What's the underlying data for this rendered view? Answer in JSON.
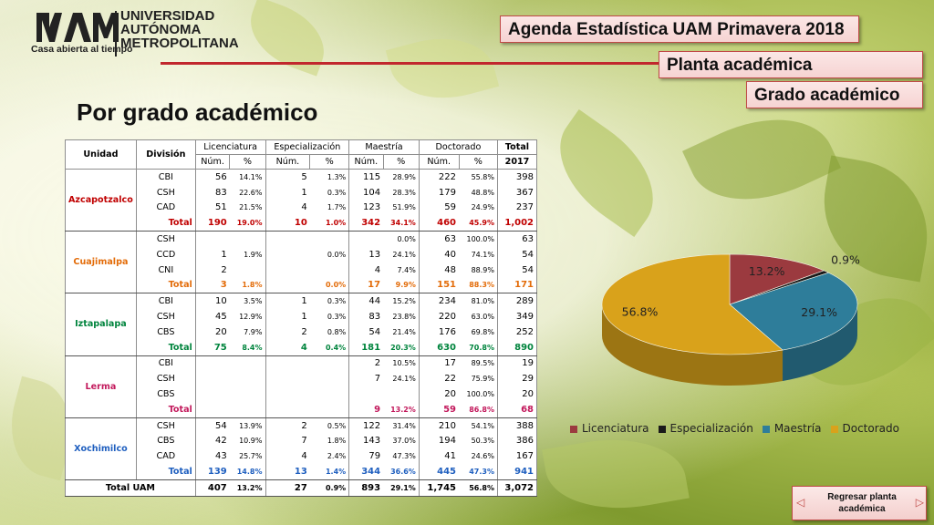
{
  "logo": {
    "tagline": "Casa abierta al tiempo",
    "university_line1": "UNIVERSIDAD",
    "university_line2": "AUTÓNOMA",
    "university_line3": "METROPOLITANA"
  },
  "tags": {
    "agenda": "Agenda Estadística UAM Primavera 2018",
    "planta": "Planta académica",
    "grado": "Grado académico"
  },
  "page_title": "Por grado académico",
  "table": {
    "headers": {
      "unidad": "Unidad",
      "division": "División",
      "licenciatura": "Licenciatura",
      "especializacion": "Especialización",
      "maestria": "Maestría",
      "doctorado": "Doctorado",
      "total": "Total",
      "total_year": "2017",
      "num": "Núm.",
      "pct": "%"
    },
    "units": [
      {
        "name": "Azcapotzalco",
        "color": "#c00000",
        "rows": [
          {
            "div": "CBI",
            "lic": "56",
            "licp": "14.1%",
            "esp": "5",
            "espp": "1.3%",
            "mae": "115",
            "maep": "28.9%",
            "doc": "222",
            "docp": "55.8%",
            "tot": "398"
          },
          {
            "div": "CSH",
            "lic": "83",
            "licp": "22.6%",
            "esp": "1",
            "espp": "0.3%",
            "mae": "104",
            "maep": "28.3%",
            "doc": "179",
            "docp": "48.8%",
            "tot": "367"
          },
          {
            "div": "CAD",
            "lic": "51",
            "licp": "21.5%",
            "esp": "4",
            "espp": "1.7%",
            "mae": "123",
            "maep": "51.9%",
            "doc": "59",
            "docp": "24.9%",
            "tot": "237"
          }
        ],
        "total": {
          "div": "Total",
          "lic": "190",
          "licp": "19.0%",
          "esp": "10",
          "espp": "1.0%",
          "mae": "342",
          "maep": "34.1%",
          "doc": "460",
          "docp": "45.9%",
          "tot": "1,002"
        }
      },
      {
        "name": "Cuajimalpa",
        "color": "#e36c09",
        "rows": [
          {
            "div": "CSH",
            "lic": "",
            "licp": "",
            "esp": "",
            "espp": "",
            "mae": "",
            "maep": "0.0%",
            "doc": "63",
            "docp": "100.0%",
            "tot": "63"
          },
          {
            "div": "CCD",
            "lic": "1",
            "licp": "1.9%",
            "esp": "",
            "espp": "0.0%",
            "mae": "13",
            "maep": "24.1%",
            "doc": "40",
            "docp": "74.1%",
            "tot": "54"
          },
          {
            "div": "CNI",
            "lic": "2",
            "licp": "",
            "esp": "",
            "espp": "",
            "mae": "4",
            "maep": "7.4%",
            "doc": "48",
            "docp": "88.9%",
            "tot": "54"
          }
        ],
        "total": {
          "div": "Total",
          "lic": "3",
          "licp": "1.8%",
          "esp": "",
          "espp": "0.0%",
          "mae": "17",
          "maep": "9.9%",
          "doc": "151",
          "docp": "88.3%",
          "tot": "171"
        }
      },
      {
        "name": "Iztapalapa",
        "color": "#00843d",
        "rows": [
          {
            "div": "CBI",
            "lic": "10",
            "licp": "3.5%",
            "esp": "1",
            "espp": "0.3%",
            "mae": "44",
            "maep": "15.2%",
            "doc": "234",
            "docp": "81.0%",
            "tot": "289"
          },
          {
            "div": "CSH",
            "lic": "45",
            "licp": "12.9%",
            "esp": "1",
            "espp": "0.3%",
            "mae": "83",
            "maep": "23.8%",
            "doc": "220",
            "docp": "63.0%",
            "tot": "349"
          },
          {
            "div": "CBS",
            "lic": "20",
            "licp": "7.9%",
            "esp": "2",
            "espp": "0.8%",
            "mae": "54",
            "maep": "21.4%",
            "doc": "176",
            "docp": "69.8%",
            "tot": "252"
          }
        ],
        "total": {
          "div": "Total",
          "lic": "75",
          "licp": "8.4%",
          "esp": "4",
          "espp": "0.4%",
          "mae": "181",
          "maep": "20.3%",
          "doc": "630",
          "docp": "70.8%",
          "tot": "890"
        }
      },
      {
        "name": "Lerma",
        "color": "#c2185b",
        "rows": [
          {
            "div": "CBI",
            "lic": "",
            "licp": "",
            "esp": "",
            "espp": "",
            "mae": "2",
            "maep": "10.5%",
            "doc": "17",
            "docp": "89.5%",
            "tot": "19"
          },
          {
            "div": "CSH",
            "lic": "",
            "licp": "",
            "esp": "",
            "espp": "",
            "mae": "7",
            "maep": "24.1%",
            "doc": "22",
            "docp": "75.9%",
            "tot": "29"
          },
          {
            "div": "CBS",
            "lic": "",
            "licp": "",
            "esp": "",
            "espp": "",
            "mae": "",
            "maep": "",
            "doc": "20",
            "docp": "100.0%",
            "tot": "20"
          }
        ],
        "total": {
          "div": "Total",
          "lic": "",
          "licp": "",
          "esp": "",
          "espp": "",
          "mae": "9",
          "maep": "13.2%",
          "doc": "59",
          "docp": "86.8%",
          "tot": "68"
        }
      },
      {
        "name": "Xochimilco",
        "color": "#1f5fbf",
        "rows": [
          {
            "div": "CSH",
            "lic": "54",
            "licp": "13.9%",
            "esp": "2",
            "espp": "0.5%",
            "mae": "122",
            "maep": "31.4%",
            "doc": "210",
            "docp": "54.1%",
            "tot": "388"
          },
          {
            "div": "CBS",
            "lic": "42",
            "licp": "10.9%",
            "esp": "7",
            "espp": "1.8%",
            "mae": "143",
            "maep": "37.0%",
            "doc": "194",
            "docp": "50.3%",
            "tot": "386"
          },
          {
            "div": "CAD",
            "lic": "43",
            "licp": "25.7%",
            "esp": "4",
            "espp": "2.4%",
            "mae": "79",
            "maep": "47.3%",
            "doc": "41",
            "docp": "24.6%",
            "tot": "167"
          }
        ],
        "total": {
          "div": "Total",
          "lic": "139",
          "licp": "14.8%",
          "esp": "13",
          "espp": "1.4%",
          "mae": "344",
          "maep": "36.6%",
          "doc": "445",
          "docp": "47.3%",
          "tot": "941"
        }
      }
    ],
    "grand_total": {
      "label": "Total UAM",
      "lic": "407",
      "licp": "13.2%",
      "esp": "27",
      "espp": "0.9%",
      "mae": "893",
      "maep": "29.1%",
      "doc": "1,745",
      "docp": "56.8%",
      "tot": "3,072"
    }
  },
  "chart_data": {
    "type": "pie",
    "categories": [
      "Licenciatura",
      "Especialización",
      "Maestría",
      "Doctorado"
    ],
    "values": [
      13.2,
      0.9,
      29.1,
      56.8
    ],
    "labels": [
      "13.2%",
      "0.9%",
      "29.1%",
      "56.8%"
    ],
    "colors": [
      "#9b3a3f",
      "#1a1a1a",
      "#2e7d9a",
      "#d9a21b"
    ],
    "legend_position": "bottom"
  },
  "back_button": {
    "label": "Regresar planta académica"
  }
}
